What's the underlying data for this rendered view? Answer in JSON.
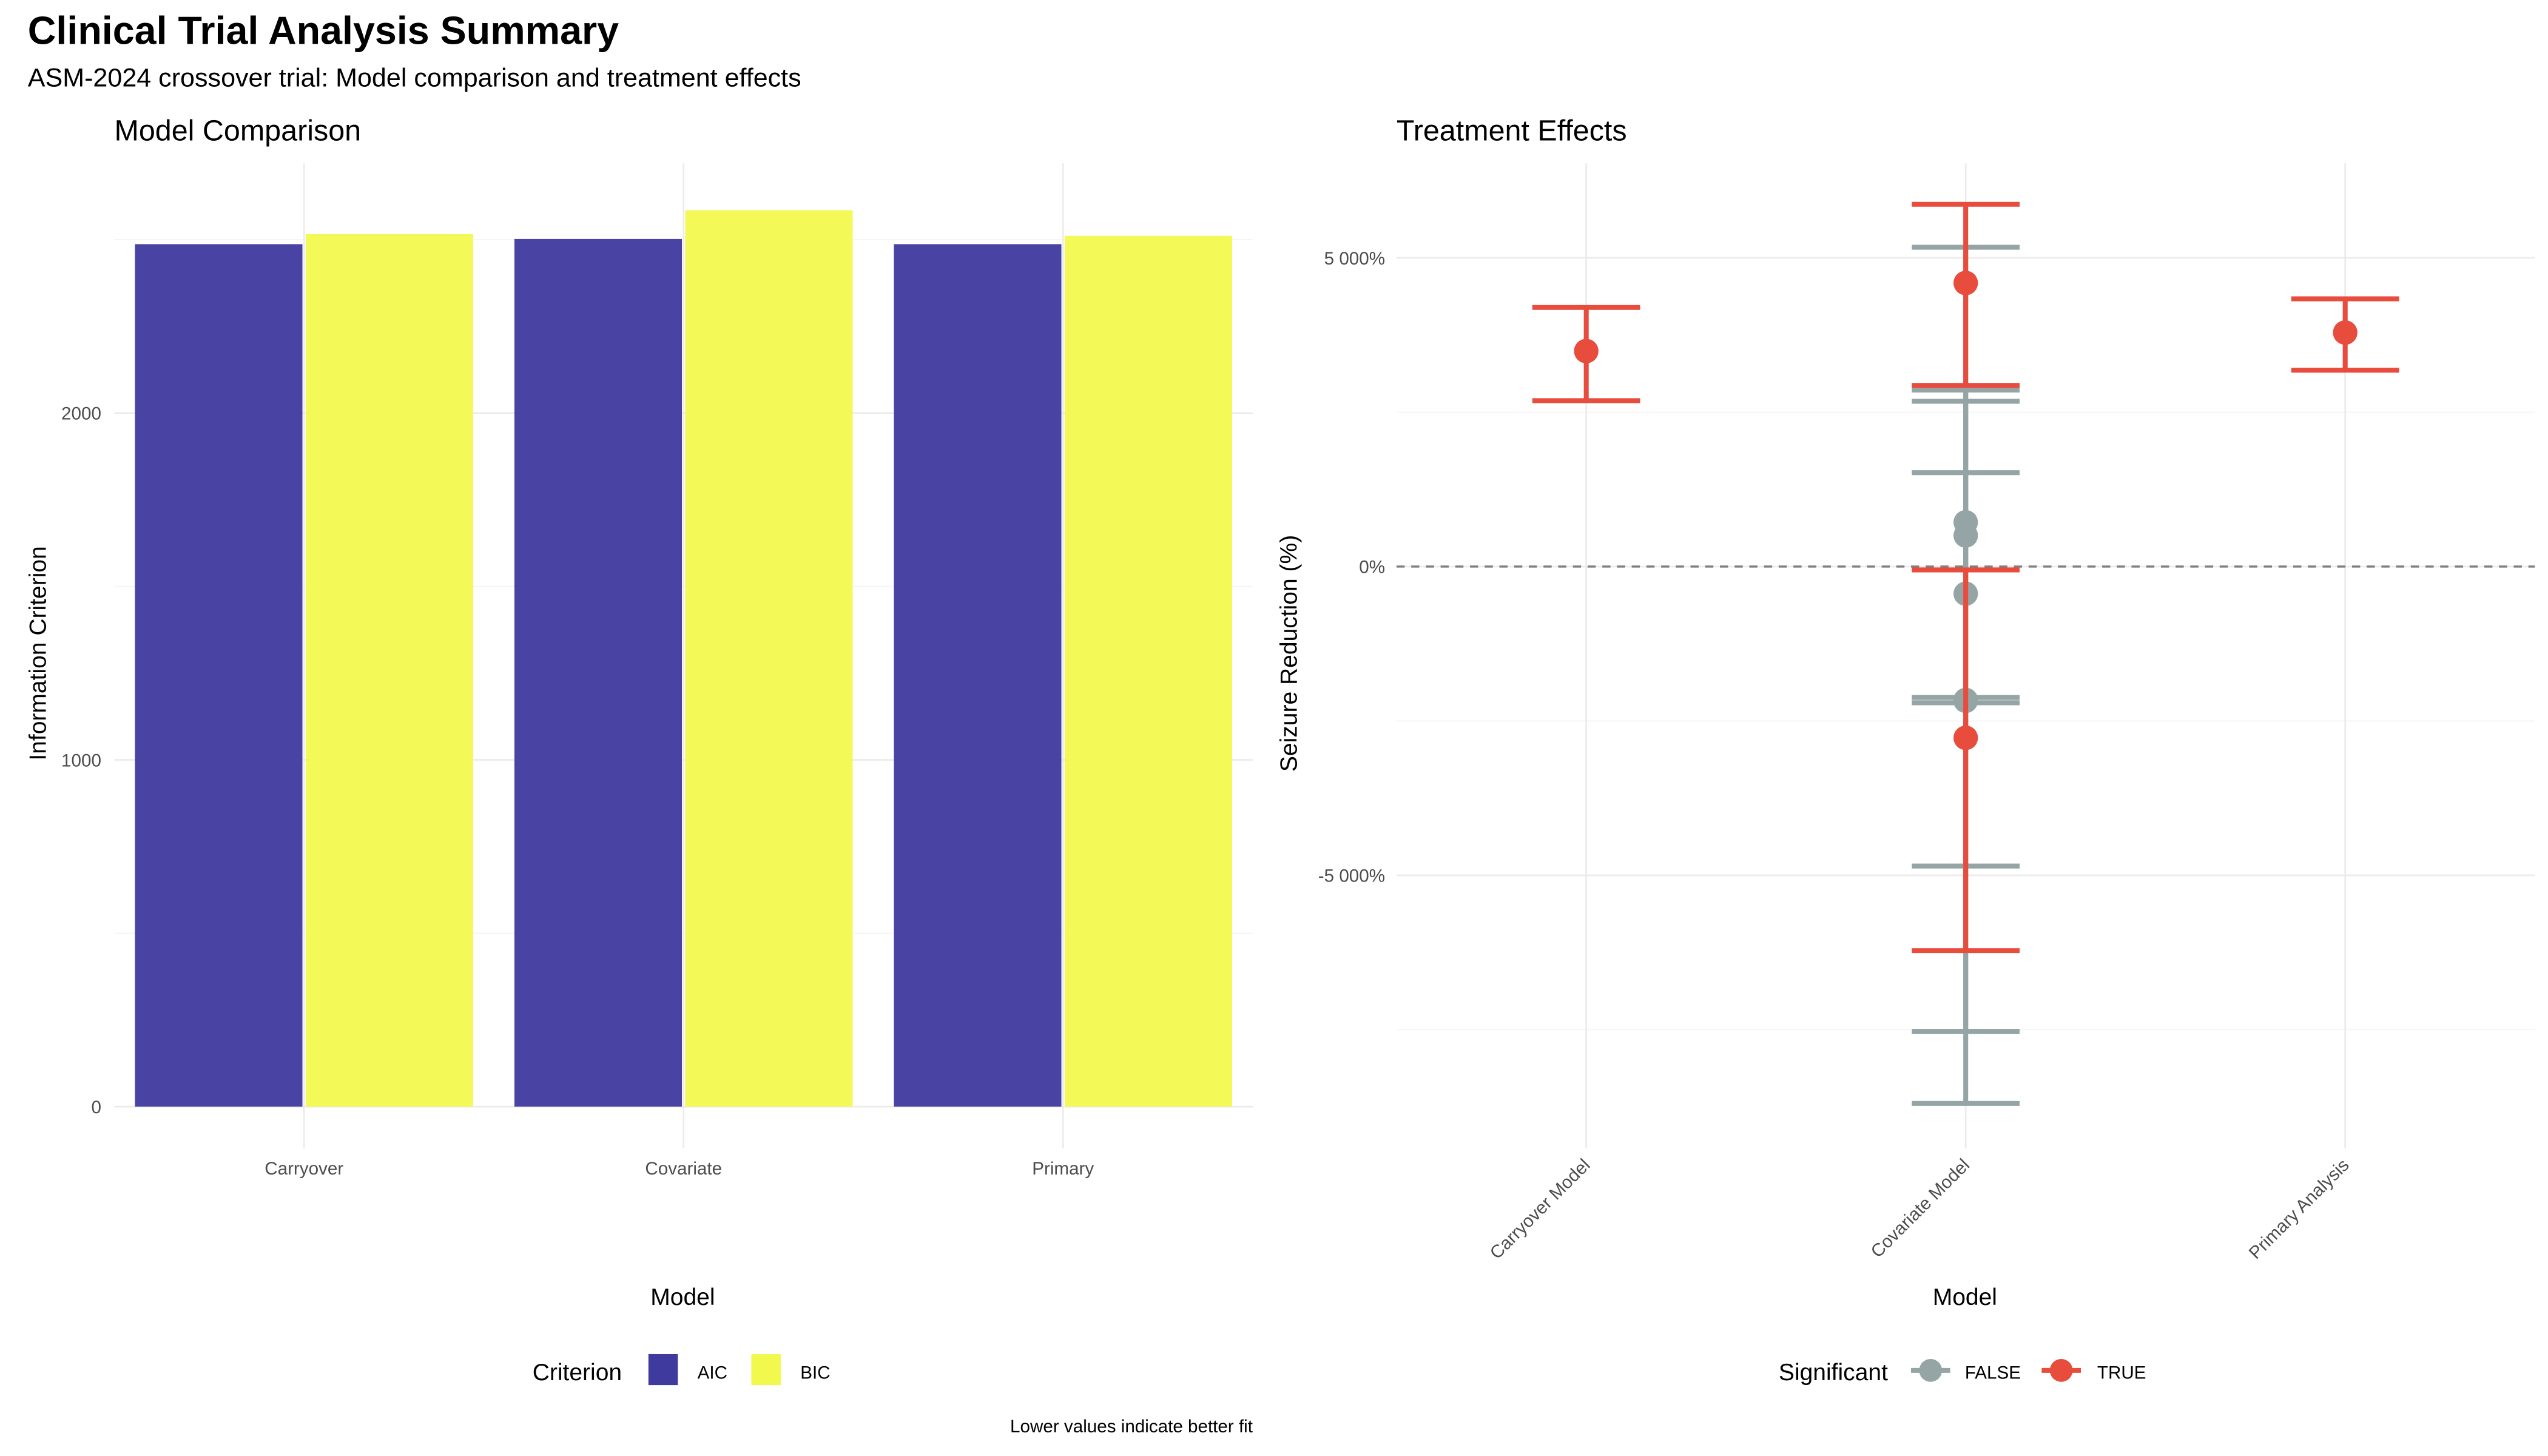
{
  "title": "Clinical Trial Analysis Summary",
  "subtitle": "ASM-2024 crossover trial: Model comparison and treatment effects",
  "colors": {
    "AIC": "#3f3a9e",
    "BIC": "#f2f94d",
    "significant_true": "#e74c3c",
    "significant_false": "#95a5a6",
    "grid": "#ebebeb",
    "zero_line": "#7f7f7f"
  },
  "chart_data": [
    {
      "type": "bar",
      "title": "Model Comparison",
      "xlabel": "Model",
      "ylabel": "Information Criterion",
      "categories": [
        "Carryover",
        "Covariate",
        "Primary"
      ],
      "series": [
        {
          "name": "AIC",
          "values": [
            2487,
            2502,
            2487
          ]
        },
        {
          "name": "BIC",
          "values": [
            2516,
            2585,
            2511
          ]
        }
      ],
      "yticks": [
        0,
        1000,
        2000
      ],
      "ytick_labels": [
        "0",
        "1000",
        "2000"
      ],
      "ylim": [
        -120,
        2720
      ],
      "grid": true,
      "legend": {
        "title": "Criterion",
        "position": "bottom",
        "entries": [
          "AIC",
          "BIC"
        ]
      },
      "caption": "Lower values indicate better fit"
    },
    {
      "type": "scatter",
      "title": "Treatment Effects",
      "xlabel": "Model",
      "ylabel": "Seizure Reduction (%)",
      "categories": [
        "Carryover Model",
        "Covariate Model",
        "Primary Analysis"
      ],
      "points": [
        {
          "model": "Carryover Model",
          "estimate": 3490,
          "lower": 2687,
          "upper": 4197,
          "significant": "TRUE"
        },
        {
          "model": "Covariate Model",
          "estimate": 4593,
          "lower": 2934,
          "upper": 5867,
          "significant": "TRUE"
        },
        {
          "model": "Covariate Model",
          "estimate": -2773,
          "lower": -6221,
          "upper": -54,
          "significant": "TRUE"
        },
        {
          "model": "Covariate Model",
          "estimate": 717,
          "lower": -4850,
          "upper": 5171,
          "significant": "FALSE"
        },
        {
          "model": "Covariate Model",
          "estimate": 503,
          "lower": -7527,
          "upper": 2859,
          "significant": "FALSE"
        },
        {
          "model": "Covariate Model",
          "estimate": -439,
          "lower": -8694,
          "upper": 2677,
          "significant": "FALSE"
        },
        {
          "model": "Covariate Model",
          "estimate": -2174,
          "lower": -2206,
          "upper": 1520,
          "significant": "FALSE"
        },
        {
          "model": "Covariate Model",
          "estimate": -2160,
          "lower": -2206,
          "upper": -2120,
          "significant": "FALSE"
        },
        {
          "model": "Primary Analysis",
          "estimate": 3790,
          "lower": 3180,
          "upper": 4336,
          "significant": "TRUE"
        }
      ],
      "yticks": [
        -5000,
        0,
        5000
      ],
      "ytick_labels": [
        "-5 000%",
        "0%",
        "5 000%"
      ],
      "ylim": [
        -9420,
        6530
      ],
      "reference_line": 0,
      "grid": true,
      "legend": {
        "title": "Significant",
        "position": "bottom",
        "entries": [
          "FALSE",
          "TRUE"
        ]
      }
    }
  ]
}
